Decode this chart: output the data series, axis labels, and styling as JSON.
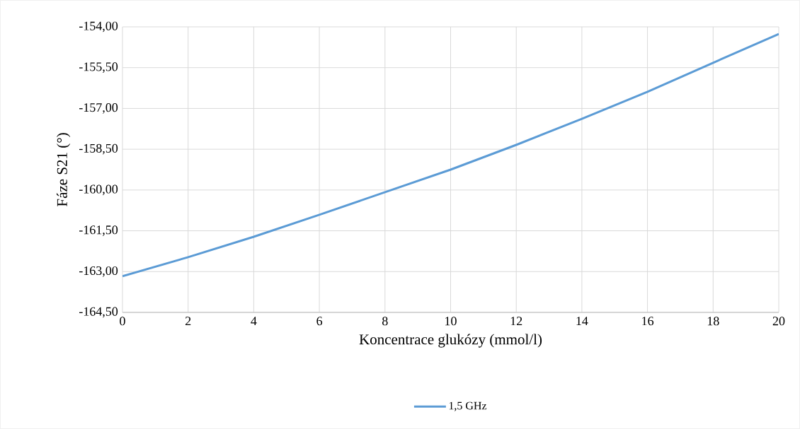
{
  "chart_data": {
    "type": "line",
    "xlabel": "Koncentrace glukózy (mmol/l)",
    "ylabel": "Fáze S21 (°)",
    "x": [
      0,
      2,
      4,
      6,
      8,
      10,
      12,
      14,
      16,
      18,
      20
    ],
    "series": [
      {
        "name": "1,5 GHz",
        "color": "#5b9bd5",
        "values": [
          -163.17,
          -162.47,
          -161.72,
          -160.91,
          -160.08,
          -159.25,
          -158.34,
          -157.38,
          -156.39,
          -155.32,
          -154.26
        ]
      }
    ],
    "xlim": [
      0,
      20
    ],
    "xticks": [
      0,
      2,
      4,
      6,
      8,
      10,
      12,
      14,
      16,
      18,
      20
    ],
    "ylim": [
      -164.5,
      -154
    ],
    "yticks": [
      {
        "value": -164.5,
        "label": "-164,50"
      },
      {
        "value": -163,
        "label": "-163,00"
      },
      {
        "value": -161.5,
        "label": "-161,50"
      },
      {
        "value": -160,
        "label": "-160,00"
      },
      {
        "value": -158.5,
        "label": "-158,50"
      },
      {
        "value": -157,
        "label": "-157,00"
      },
      {
        "value": -155.5,
        "label": "-155,50"
      },
      {
        "value": -154,
        "label": "-154,00"
      }
    ],
    "grid": true,
    "legend": "bottom",
    "marker": "none",
    "line_style": "solid"
  }
}
